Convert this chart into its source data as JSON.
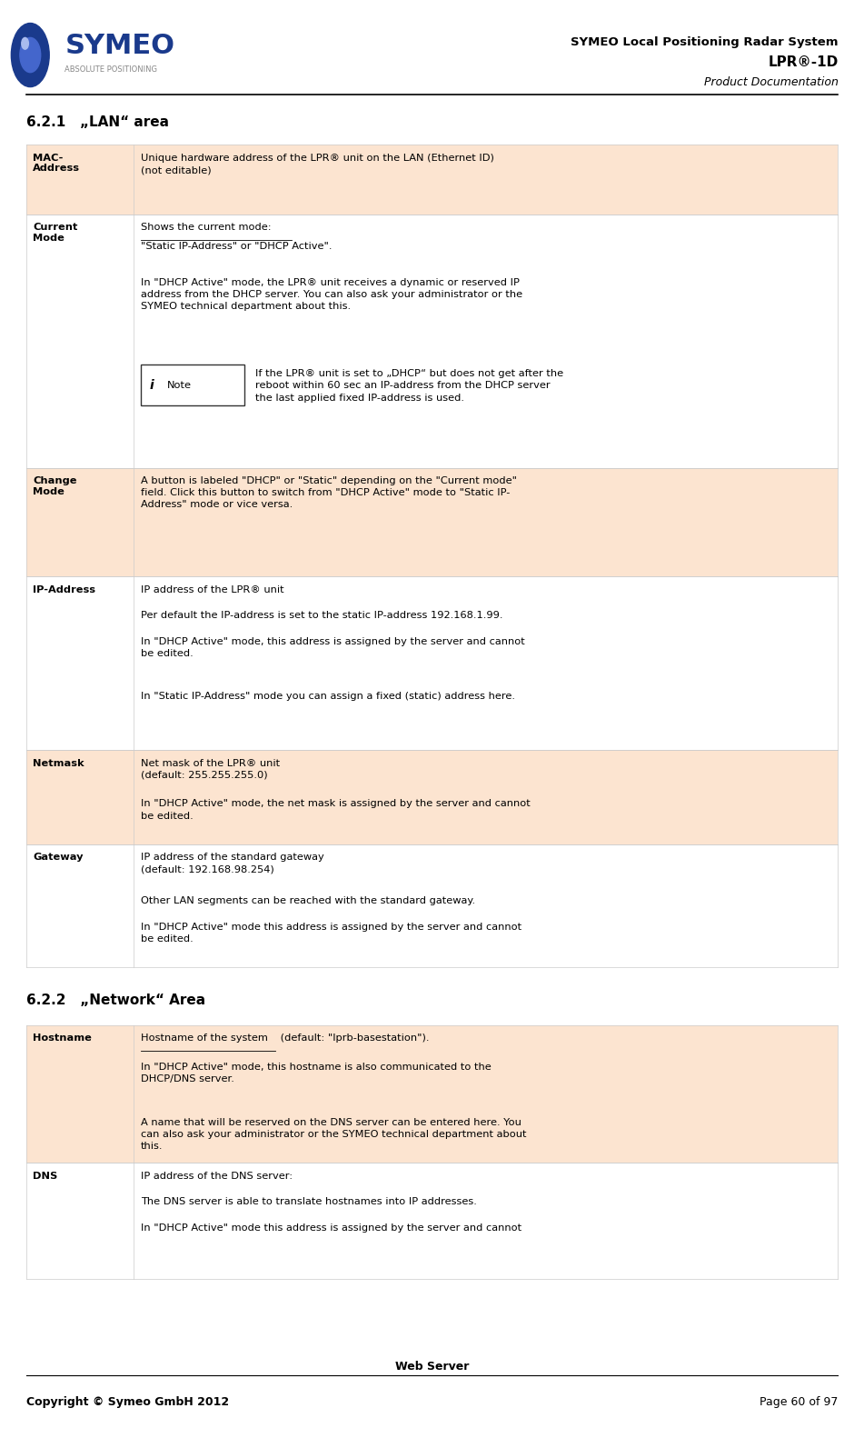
{
  "page_width": 9.51,
  "page_height": 15.93,
  "bg_color": "#ffffff",
  "orange_bg": "#fce4d0",
  "white_bg": "#ffffff",
  "section1_title": "6.2.1   „LAN“ area",
  "section2_title": "6.2.2   „Network“ Area",
  "footer_text_center": "Web Server",
  "footer_text_left": "Copyright © Symeo GmbH 2012",
  "footer_text_right": "Page 60 of 97"
}
